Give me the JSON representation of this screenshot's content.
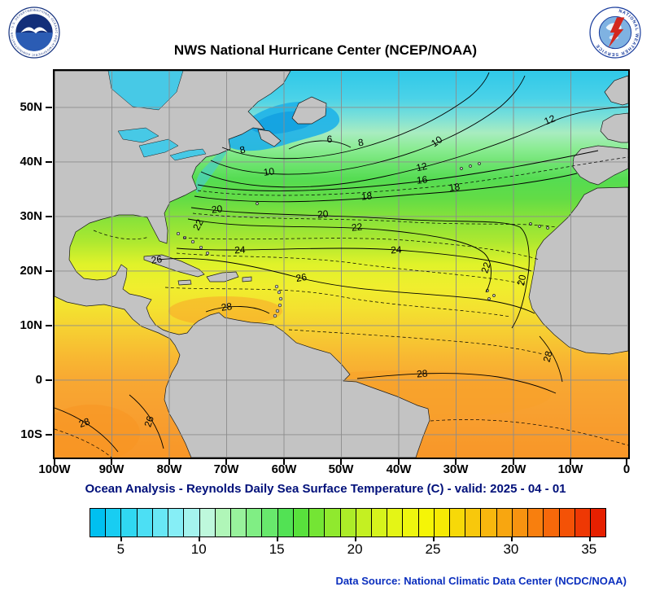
{
  "header": {
    "title": "NWS National Hurricane Center (NCEP/NOAA)",
    "noaa_ring_text": "NATIONAL OCEANIC AND ATMOSPHERIC ADMINISTRATION - U.S. DEPARTMENT OF COMMERCE",
    "nws_ring_text": "NATIONAL WEATHER SERVICE"
  },
  "map": {
    "lat_labels": [
      "50N",
      "40N",
      "30N",
      "20N",
      "10N",
      "0",
      "10S"
    ],
    "lon_labels": [
      "100W",
      "90W",
      "80W",
      "70W",
      "60W",
      "50W",
      "40W",
      "30W",
      "20W",
      "10W",
      "0"
    ],
    "contour_labels": [
      "6",
      "8",
      "8",
      "10",
      "10",
      "12",
      "12",
      "16",
      "18",
      "18",
      "20",
      "20",
      "20",
      "22",
      "22",
      "22",
      "24",
      "24",
      "26",
      "26",
      "28",
      "28",
      "28",
      "26",
      "28"
    ],
    "land_color": "#c3c3c3",
    "cold_water_color": "#1fb2e8",
    "warm_water_color": "#f89a2c"
  },
  "subtitle": {
    "text": "Ocean Analysis - Reynolds Daily Sea Surface Temperature (C) - valid: 2025 - 04 - 01"
  },
  "colorbar": {
    "ticks": [
      "5",
      "10",
      "15",
      "20",
      "25",
      "30",
      "35"
    ],
    "colors": [
      "#00c0f0",
      "#18cdf2",
      "#30d8f2",
      "#4cdff4",
      "#68e7f5",
      "#86eef6",
      "#a4f4ee",
      "#bef8dc",
      "#b0f6b8",
      "#98f29c",
      "#80ee84",
      "#68e86c",
      "#52e254",
      "#58e13c",
      "#74e534",
      "#90e92e",
      "#acec28",
      "#c4f022",
      "#d6f31c",
      "#e4f516",
      "#eef60e",
      "#f5f506",
      "#f6ea04",
      "#f7d908",
      "#f8c80c",
      "#f8b70e",
      "#f8a610",
      "#f89310",
      "#f87f0e",
      "#f7680a",
      "#f45206",
      "#ee3804",
      "#e62000"
    ]
  },
  "footer": {
    "data_source": "Data Source: National Climatic Data Center (NCDC/NOAA)"
  }
}
